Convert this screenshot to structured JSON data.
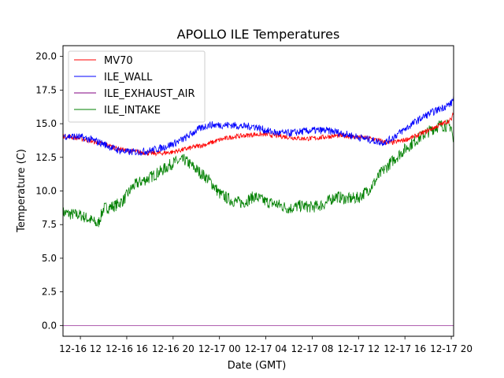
{
  "chart_data": {
    "type": "line",
    "title": "APOLLO ILE Temperatures",
    "xlabel": "Date (GMT)",
    "ylabel": "Temperature (C)",
    "xlim": [
      10.5,
      44.2
    ],
    "ylim": [
      -0.8,
      20.8
    ],
    "grid": false,
    "legend": "top-left",
    "x_ticks": [
      {
        "x": 12,
        "label": "12-16 12"
      },
      {
        "x": 16,
        "label": "12-16 16"
      },
      {
        "x": 20,
        "label": "12-16 20"
      },
      {
        "x": 24,
        "label": "12-17 00"
      },
      {
        "x": 28,
        "label": "12-17 04"
      },
      {
        "x": 32,
        "label": "12-17 08"
      },
      {
        "x": 36,
        "label": "12-17 12"
      },
      {
        "x": 40,
        "label": "12-17 16"
      },
      {
        "x": 44,
        "label": "12-17 20"
      }
    ],
    "y_ticks": [
      "0.0",
      "2.5",
      "5.0",
      "7.5",
      "10.0",
      "12.5",
      "15.0",
      "17.5",
      "20.0"
    ],
    "x_unit_note": "x values are hours since 2016-12-16 00:00 GMT",
    "series": [
      {
        "name": "MV70",
        "color": "#ff0000",
        "x": [
          10.5,
          12,
          13,
          14,
          15,
          16,
          17,
          18,
          19,
          20,
          21,
          22,
          23,
          24,
          25,
          26,
          27,
          28,
          29,
          30,
          31,
          32,
          33,
          34,
          35,
          36,
          37,
          38,
          38.5,
          39,
          40,
          41,
          42,
          43,
          44,
          44.2
        ],
        "values": [
          14.1,
          13.9,
          13.7,
          13.5,
          13.2,
          13.0,
          12.9,
          12.8,
          12.8,
          12.9,
          13.1,
          13.3,
          13.5,
          13.8,
          14.0,
          14.1,
          14.2,
          14.2,
          14.1,
          14.0,
          13.9,
          13.9,
          14.0,
          14.1,
          14.1,
          14.0,
          13.9,
          13.7,
          13.6,
          13.6,
          13.8,
          14.1,
          14.5,
          14.9,
          15.3,
          15.8
        ]
      },
      {
        "name": "ILE_WALL",
        "color": "#0000ff",
        "x": [
          10.5,
          12,
          13,
          14,
          15,
          16,
          17,
          18,
          19,
          20,
          21,
          22,
          23,
          24,
          25,
          26,
          27,
          28,
          29,
          30,
          31,
          32,
          33,
          34,
          35,
          36,
          37,
          38,
          38.5,
          39,
          40,
          41,
          42,
          43,
          44,
          44.2
        ],
        "values": [
          14.1,
          14.0,
          13.8,
          13.5,
          13.1,
          12.9,
          12.9,
          13.0,
          13.2,
          13.5,
          13.9,
          14.5,
          14.9,
          14.9,
          14.9,
          14.8,
          14.8,
          14.5,
          14.3,
          14.3,
          14.4,
          14.5,
          14.5,
          14.4,
          14.2,
          14.0,
          13.8,
          13.6,
          13.7,
          14.0,
          14.6,
          15.2,
          15.7,
          16.1,
          16.5,
          17.0
        ]
      },
      {
        "name": "ILE_EXHAUST_AIR",
        "color": "#800080",
        "x": [
          10.5,
          44.2
        ],
        "values": [
          0.0,
          0.0
        ]
      },
      {
        "name": "ILE_INTAKE",
        "color": "#008000",
        "x": [
          10.5,
          11,
          12,
          13,
          13.5,
          14,
          15,
          15.7,
          16.5,
          17,
          18,
          19,
          20,
          21,
          22,
          23,
          23.5,
          24,
          25,
          26,
          27,
          28,
          29,
          30,
          31,
          32,
          33,
          34,
          35,
          36,
          37,
          38,
          39,
          40,
          41,
          42,
          43,
          44,
          44.2
        ],
        "values": [
          8.4,
          8.3,
          8.2,
          7.8,
          7.5,
          8.7,
          8.9,
          9.3,
          10.3,
          10.6,
          11.0,
          11.5,
          12.1,
          12.3,
          11.6,
          10.9,
          10.4,
          9.8,
          9.3,
          9.1,
          9.6,
          9.2,
          9.0,
          8.7,
          8.9,
          8.8,
          9.0,
          9.6,
          9.4,
          9.5,
          10.2,
          11.4,
          12.3,
          13.1,
          13.8,
          14.4,
          14.9,
          14.8,
          13.4
        ]
      }
    ]
  }
}
